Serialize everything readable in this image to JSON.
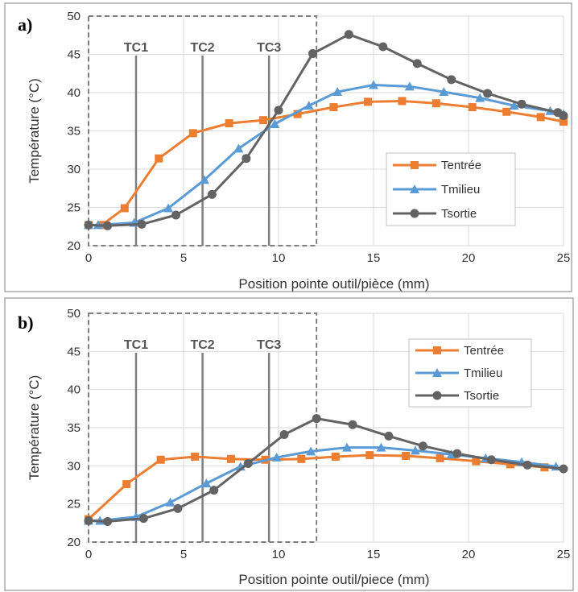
{
  "chart_data": [
    {
      "type": "line",
      "panel_label": "a)",
      "xlabel": "Position pointe outil/pièce (mm)",
      "ylabel": "Température (°C)",
      "xlim": [
        0,
        25
      ],
      "ylim": [
        20,
        50
      ],
      "xticks": [
        "0",
        "5",
        "10",
        "15",
        "20",
        "25"
      ],
      "yticks": [
        "20",
        "25",
        "30",
        "35",
        "40",
        "45",
        "50"
      ],
      "grid": true,
      "legend_position": "middle-right",
      "dashed_region_x": [
        0,
        12
      ],
      "markers": [
        {
          "label": "TC1",
          "x": 2.5
        },
        {
          "label": "TC2",
          "x": 6
        },
        {
          "label": "TC3",
          "x": 9.5
        }
      ],
      "series": [
        {
          "name": "Tentrée",
          "color": "#ED7D31",
          "marker": "square",
          "x": [
            0,
            0.7,
            1.9,
            3.7,
            5.5,
            7.4,
            9.2,
            11.0,
            12.9,
            14.7,
            16.5,
            18.3,
            20.2,
            22.0,
            23.8,
            25.0
          ],
          "y": [
            22.7,
            22.7,
            24.9,
            31.4,
            34.7,
            36.0,
            36.4,
            37.2,
            38.1,
            38.8,
            38.9,
            38.6,
            38.1,
            37.5,
            36.8,
            36.2
          ]
        },
        {
          "name": "Tmilieu",
          "color": "#5B9BD5",
          "marker": "triangle",
          "x": [
            0,
            0.5,
            2.4,
            4.2,
            6.1,
            7.9,
            9.8,
            11.6,
            13.1,
            15.0,
            16.9,
            18.7,
            20.6,
            22.4,
            24.3,
            25.0
          ],
          "y": [
            22.7,
            22.7,
            23.0,
            24.9,
            28.6,
            32.7,
            35.9,
            38.3,
            40.1,
            41.0,
            40.8,
            40.1,
            39.3,
            38.3,
            37.6,
            37.2
          ]
        },
        {
          "name": "Tsortie",
          "color": "#636363",
          "marker": "circle",
          "x": [
            0,
            1.0,
            2.8,
            4.6,
            6.5,
            8.3,
            10.0,
            11.8,
            13.7,
            15.5,
            17.3,
            19.1,
            21.0,
            22.8,
            24.7,
            25.0
          ],
          "y": [
            22.7,
            22.6,
            22.8,
            24.0,
            26.7,
            31.4,
            37.7,
            45.1,
            47.6,
            46.0,
            43.8,
            41.7,
            39.9,
            38.5,
            37.4,
            37.0
          ]
        }
      ]
    },
    {
      "type": "line",
      "panel_label": "b)",
      "xlabel": "Position pointe outil/piece (mm)",
      "ylabel": "Température (°C)",
      "xlim": [
        0,
        25
      ],
      "ylim": [
        20,
        50
      ],
      "xticks": [
        "0",
        "5",
        "10",
        "15",
        "20",
        "25"
      ],
      "yticks": [
        "20",
        "25",
        "30",
        "35",
        "40",
        "45",
        "50"
      ],
      "grid": true,
      "legend_position": "top-right",
      "dashed_region_x": [
        0,
        12
      ],
      "markers": [
        {
          "label": "TC1",
          "x": 2.5
        },
        {
          "label": "TC2",
          "x": 6
        },
        {
          "label": "TC3",
          "x": 9.5
        }
      ],
      "series": [
        {
          "name": "Tentrée",
          "color": "#ED7D31",
          "marker": "square",
          "x": [
            0,
            2.0,
            3.8,
            5.6,
            7.5,
            9.3,
            11.2,
            13.0,
            14.8,
            16.7,
            18.5,
            20.4,
            22.2,
            24.0
          ],
          "y": [
            23.0,
            27.6,
            30.8,
            31.2,
            30.9,
            30.8,
            30.9,
            31.2,
            31.4,
            31.3,
            31.0,
            30.6,
            30.2,
            29.8
          ]
        },
        {
          "name": "Tmilieu",
          "color": "#5B9BD5",
          "marker": "triangle",
          "x": [
            0,
            0.6,
            2.5,
            4.3,
            6.2,
            8.0,
            9.9,
            11.7,
            13.6,
            15.4,
            17.2,
            19.1,
            20.9,
            22.8,
            24.6
          ],
          "y": [
            22.8,
            22.8,
            23.3,
            25.2,
            27.7,
            29.9,
            31.1,
            31.9,
            32.4,
            32.4,
            32.0,
            31.5,
            31.0,
            30.5,
            29.9
          ]
        },
        {
          "name": "Tsortie",
          "color": "#636363",
          "marker": "circle",
          "x": [
            0,
            1.0,
            2.9,
            4.7,
            6.6,
            8.4,
            10.3,
            12.0,
            13.9,
            15.8,
            17.6,
            19.4,
            21.2,
            23.1,
            25.0
          ],
          "y": [
            22.8,
            22.7,
            23.1,
            24.4,
            26.8,
            30.3,
            34.1,
            36.2,
            35.4,
            33.9,
            32.6,
            31.6,
            30.8,
            30.1,
            29.6
          ]
        }
      ]
    }
  ]
}
